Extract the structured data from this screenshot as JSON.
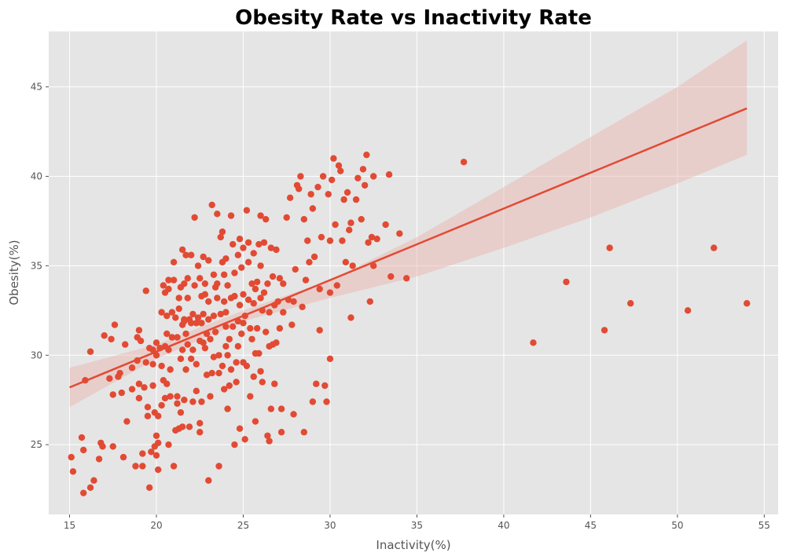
{
  "colors": {
    "plot_background": "#e5e5e5",
    "grid": "#ffffff",
    "points": "#e24a33",
    "regression_line": "#e24a33",
    "confidence_band": "#e9b1ab"
  },
  "chart_data": {
    "type": "scatter",
    "title": "Obesity Rate vs Inactivity Rate",
    "xlabel": "Inactivity(%)",
    "ylabel": "Obesity(%)",
    "xlim": [
      13.8,
      55.8
    ],
    "ylim": [
      21.1,
      48.1
    ],
    "xticks": [
      15,
      20,
      25,
      30,
      35,
      40,
      45,
      50,
      55
    ],
    "yticks": [
      25,
      30,
      35,
      40,
      45
    ],
    "grid": true,
    "regression": {
      "x": [
        15,
        54
      ],
      "y": [
        28.2,
        43.8
      ]
    },
    "confidence_band": {
      "x": [
        15,
        20,
        25,
        30,
        35,
        40,
        45,
        50,
        54
      ],
      "lower": [
        27.1,
        29.8,
        31.9,
        33.2,
        34.4,
        36.0,
        37.7,
        39.6,
        41.2
      ],
      "upper": [
        29.3,
        30.6,
        32.5,
        34.2,
        36.6,
        39.4,
        42.2,
        45.0,
        47.6
      ]
    },
    "points": [
      [
        15.1,
        24.3
      ],
      [
        15.2,
        23.5
      ],
      [
        15.7,
        25.4
      ],
      [
        15.8,
        24.7
      ],
      [
        15.8,
        22.3
      ],
      [
        15.9,
        28.6
      ],
      [
        16.2,
        22.6
      ],
      [
        16.2,
        30.2
      ],
      [
        16.4,
        23.0
      ],
      [
        16.7,
        24.2
      ],
      [
        16.8,
        25.1
      ],
      [
        16.9,
        24.9
      ],
      [
        17.0,
        31.1
      ],
      [
        17.3,
        28.7
      ],
      [
        17.4,
        30.9
      ],
      [
        17.5,
        27.8
      ],
      [
        17.5,
        24.9
      ],
      [
        17.6,
        31.7
      ],
      [
        17.8,
        28.8
      ],
      [
        17.9,
        29.0
      ],
      [
        18.0,
        27.9
      ],
      [
        18.1,
        24.3
      ],
      [
        18.2,
        30.6
      ],
      [
        18.3,
        26.3
      ],
      [
        18.6,
        28.1
      ],
      [
        18.6,
        29.3
      ],
      [
        18.8,
        23.8
      ],
      [
        18.9,
        29.7
      ],
      [
        18.9,
        31.0
      ],
      [
        19.0,
        28.4
      ],
      [
        19.0,
        27.6
      ],
      [
        19.0,
        31.4
      ],
      [
        19.1,
        30.8
      ],
      [
        19.2,
        23.8
      ],
      [
        19.2,
        24.5
      ],
      [
        19.3,
        28.2
      ],
      [
        19.4,
        33.6
      ],
      [
        19.4,
        29.6
      ],
      [
        19.5,
        26.6
      ],
      [
        19.5,
        27.1
      ],
      [
        19.6,
        30.4
      ],
      [
        19.6,
        22.6
      ],
      [
        19.7,
        24.6
      ],
      [
        19.8,
        29.5
      ],
      [
        19.8,
        30.3
      ],
      [
        19.8,
        28.3
      ],
      [
        19.9,
        26.8
      ],
      [
        19.9,
        24.9
      ],
      [
        20.0,
        25.5
      ],
      [
        20.0,
        24.4
      ],
      [
        20.0,
        30.0
      ],
      [
        20.0,
        30.7
      ],
      [
        20.1,
        26.6
      ],
      [
        20.1,
        25.1
      ],
      [
        20.1,
        23.6
      ],
      [
        20.2,
        30.4
      ],
      [
        20.3,
        27.2
      ],
      [
        20.3,
        29.4
      ],
      [
        20.3,
        32.4
      ],
      [
        20.4,
        33.9
      ],
      [
        20.4,
        28.6
      ],
      [
        20.5,
        33.5
      ],
      [
        20.5,
        27.6
      ],
      [
        20.5,
        30.5
      ],
      [
        20.6,
        32.2
      ],
      [
        20.6,
        28.4
      ],
      [
        20.6,
        31.2
      ],
      [
        20.7,
        34.2
      ],
      [
        20.7,
        33.7
      ],
      [
        20.7,
        30.3
      ],
      [
        20.7,
        25.0
      ],
      [
        20.8,
        29.2
      ],
      [
        20.8,
        27.7
      ],
      [
        20.9,
        32.4
      ],
      [
        20.9,
        31.0
      ],
      [
        21.0,
        34.2
      ],
      [
        21.0,
        35.2
      ],
      [
        21.0,
        23.8
      ],
      [
        21.1,
        25.8
      ],
      [
        21.1,
        32.1
      ],
      [
        21.2,
        27.7
      ],
      [
        21.2,
        27.3
      ],
      [
        21.2,
        31.0
      ],
      [
        21.3,
        33.2
      ],
      [
        21.3,
        25.9
      ],
      [
        21.3,
        32.6
      ],
      [
        21.4,
        29.8
      ],
      [
        21.4,
        26.8
      ],
      [
        21.4,
        33.8
      ],
      [
        21.5,
        31.7
      ],
      [
        21.5,
        26.0
      ],
      [
        21.5,
        30.3
      ],
      [
        21.5,
        35.9
      ],
      [
        21.6,
        31.9
      ],
      [
        21.6,
        27.5
      ],
      [
        21.6,
        32.0
      ],
      [
        21.6,
        34.0
      ],
      [
        21.7,
        31.2
      ],
      [
        21.7,
        29.2
      ],
      [
        21.7,
        35.6
      ],
      [
        21.8,
        30.6
      ],
      [
        21.8,
        34.3
      ],
      [
        21.8,
        33.2
      ],
      [
        21.9,
        32.0
      ],
      [
        21.9,
        26.0
      ],
      [
        22.0,
        29.8
      ],
      [
        22.0,
        35.6
      ],
      [
        22.0,
        31.8
      ],
      [
        22.1,
        32.3
      ],
      [
        22.1,
        27.4
      ],
      [
        22.1,
        30.3
      ],
      [
        22.2,
        37.7
      ],
      [
        22.2,
        33.9
      ],
      [
        22.3,
        31.8
      ],
      [
        22.3,
        28.0
      ],
      [
        22.3,
        29.5
      ],
      [
        22.4,
        32.1
      ],
      [
        22.4,
        35.0
      ],
      [
        22.5,
        34.3
      ],
      [
        22.5,
        30.8
      ],
      [
        22.5,
        26.2
      ],
      [
        22.5,
        25.7
      ],
      [
        22.6,
        33.3
      ],
      [
        22.6,
        27.4
      ],
      [
        22.6,
        31.8
      ],
      [
        22.7,
        30.7
      ],
      [
        22.7,
        35.5
      ],
      [
        22.7,
        32.3
      ],
      [
        22.8,
        34.0
      ],
      [
        22.8,
        33.4
      ],
      [
        22.8,
        30.4
      ],
      [
        22.9,
        28.9
      ],
      [
        22.9,
        31.2
      ],
      [
        23.0,
        33.0
      ],
      [
        23.0,
        35.3
      ],
      [
        23.0,
        32.0
      ],
      [
        23.0,
        23.0
      ],
      [
        23.1,
        30.9
      ],
      [
        23.1,
        27.7
      ],
      [
        23.2,
        38.4
      ],
      [
        23.2,
        29.0
      ],
      [
        23.3,
        34.5
      ],
      [
        23.3,
        32.2
      ],
      [
        23.3,
        29.9
      ],
      [
        23.4,
        31.3
      ],
      [
        23.4,
        33.8
      ],
      [
        23.5,
        37.9
      ],
      [
        23.5,
        34.0
      ],
      [
        23.5,
        33.2
      ],
      [
        23.6,
        30.0
      ],
      [
        23.6,
        29.0
      ],
      [
        23.6,
        23.8
      ],
      [
        23.7,
        32.3
      ],
      [
        23.7,
        36.6
      ],
      [
        23.8,
        35.2
      ],
      [
        23.8,
        29.4
      ],
      [
        23.8,
        36.9
      ],
      [
        23.9,
        28.1
      ],
      [
        23.9,
        33.0
      ],
      [
        23.9,
        34.5
      ],
      [
        24.0,
        32.4
      ],
      [
        24.0,
        30.5
      ],
      [
        24.0,
        31.6
      ],
      [
        24.0,
        35.4
      ],
      [
        24.1,
        27.0
      ],
      [
        24.1,
        30.0
      ],
      [
        24.1,
        33.9
      ],
      [
        24.2,
        30.9
      ],
      [
        24.2,
        28.3
      ],
      [
        24.3,
        37.8
      ],
      [
        24.3,
        33.2
      ],
      [
        24.3,
        29.2
      ],
      [
        24.4,
        31.6
      ],
      [
        24.4,
        36.2
      ],
      [
        24.5,
        25.0
      ],
      [
        24.5,
        34.6
      ],
      [
        24.5,
        33.3
      ],
      [
        24.6,
        29.6
      ],
      [
        24.6,
        28.5
      ],
      [
        24.7,
        35.6
      ],
      [
        24.7,
        30.5
      ],
      [
        24.7,
        31.9
      ],
      [
        24.8,
        36.5
      ],
      [
        24.8,
        32.8
      ],
      [
        24.8,
        25.9
      ],
      [
        24.9,
        34.9
      ],
      [
        24.9,
        31.2
      ],
      [
        25.0,
        33.4
      ],
      [
        25.0,
        36.0
      ],
      [
        25.0,
        29.6
      ],
      [
        25.0,
        31.8
      ],
      [
        25.1,
        32.2
      ],
      [
        25.1,
        25.3
      ],
      [
        25.2,
        38.1
      ],
      [
        25.2,
        29.4
      ],
      [
        25.3,
        33.1
      ],
      [
        25.3,
        35.2
      ],
      [
        25.3,
        36.3
      ],
      [
        25.4,
        27.7
      ],
      [
        25.4,
        31.5
      ],
      [
        25.5,
        30.9
      ],
      [
        25.5,
        34.0
      ],
      [
        25.6,
        28.8
      ],
      [
        25.6,
        32.9
      ],
      [
        25.6,
        35.7
      ],
      [
        25.7,
        33.7
      ],
      [
        25.7,
        30.1
      ],
      [
        25.7,
        26.3
      ],
      [
        25.8,
        34.1
      ],
      [
        25.8,
        31.5
      ],
      [
        25.9,
        36.2
      ],
      [
        25.9,
        30.1
      ],
      [
        26.0,
        37.8
      ],
      [
        26.0,
        33.2
      ],
      [
        26.0,
        29.1
      ],
      [
        26.0,
        35.0
      ],
      [
        26.1,
        32.5
      ],
      [
        26.1,
        28.5
      ],
      [
        26.2,
        33.5
      ],
      [
        26.2,
        36.3
      ],
      [
        26.3,
        37.6
      ],
      [
        26.3,
        31.3
      ],
      [
        26.4,
        25.5
      ],
      [
        26.4,
        34.0
      ],
      [
        26.5,
        30.5
      ],
      [
        26.5,
        32.4
      ],
      [
        26.5,
        25.2
      ],
      [
        26.6,
        36.0
      ],
      [
        26.6,
        27.0
      ],
      [
        26.7,
        34.4
      ],
      [
        26.7,
        30.6
      ],
      [
        26.8,
        28.4
      ],
      [
        26.8,
        32.8
      ],
      [
        26.9,
        35.9
      ],
      [
        26.9,
        30.7
      ],
      [
        27.0,
        33.0
      ],
      [
        27.1,
        34.3
      ],
      [
        27.1,
        31.5
      ],
      [
        27.2,
        27.0
      ],
      [
        27.2,
        25.7
      ],
      [
        27.3,
        34.0
      ],
      [
        27.3,
        32.4
      ],
      [
        27.5,
        37.7
      ],
      [
        27.6,
        33.1
      ],
      [
        27.7,
        38.8
      ],
      [
        27.8,
        31.7
      ],
      [
        27.9,
        26.7
      ],
      [
        27.9,
        33.0
      ],
      [
        28.0,
        34.8
      ],
      [
        28.1,
        39.5
      ],
      [
        28.2,
        39.3
      ],
      [
        28.3,
        40.0
      ],
      [
        28.4,
        32.7
      ],
      [
        28.5,
        25.7
      ],
      [
        28.5,
        37.6
      ],
      [
        28.6,
        34.2
      ],
      [
        28.7,
        36.4
      ],
      [
        28.8,
        35.2
      ],
      [
        28.9,
        39.0
      ],
      [
        29.0,
        27.4
      ],
      [
        29.0,
        38.2
      ],
      [
        29.1,
        35.5
      ],
      [
        29.2,
        28.4
      ],
      [
        29.3,
        39.4
      ],
      [
        29.4,
        33.7
      ],
      [
        29.4,
        31.4
      ],
      [
        29.5,
        36.6
      ],
      [
        29.6,
        40.0
      ],
      [
        29.7,
        28.3
      ],
      [
        29.8,
        27.4
      ],
      [
        29.9,
        39.0
      ],
      [
        30.0,
        33.5
      ],
      [
        30.0,
        36.4
      ],
      [
        30.0,
        29.8
      ],
      [
        30.1,
        39.8
      ],
      [
        30.2,
        41.0
      ],
      [
        30.3,
        37.3
      ],
      [
        30.4,
        33.9
      ],
      [
        30.5,
        40.6
      ],
      [
        30.6,
        40.3
      ],
      [
        30.7,
        36.4
      ],
      [
        30.8,
        38.7
      ],
      [
        30.9,
        35.2
      ],
      [
        31.0,
        39.1
      ],
      [
        31.1,
        37.0
      ],
      [
        31.2,
        37.4
      ],
      [
        31.2,
        32.1
      ],
      [
        31.3,
        35.0
      ],
      [
        31.5,
        38.7
      ],
      [
        31.6,
        39.9
      ],
      [
        31.8,
        37.6
      ],
      [
        31.9,
        40.4
      ],
      [
        32.0,
        39.5
      ],
      [
        32.1,
        41.2
      ],
      [
        32.2,
        36.3
      ],
      [
        32.3,
        33.0
      ],
      [
        32.4,
        36.6
      ],
      [
        32.5,
        40.0
      ],
      [
        32.5,
        35.0
      ],
      [
        32.7,
        36.5
      ],
      [
        33.2,
        37.3
      ],
      [
        33.4,
        40.1
      ],
      [
        33.5,
        34.4
      ],
      [
        34.0,
        36.8
      ],
      [
        34.4,
        34.3
      ],
      [
        37.7,
        40.8
      ],
      [
        41.7,
        30.7
      ],
      [
        43.6,
        34.1
      ],
      [
        45.8,
        31.4
      ],
      [
        46.1,
        36.0
      ],
      [
        47.3,
        32.9
      ],
      [
        50.6,
        32.5
      ],
      [
        52.1,
        36.0
      ],
      [
        54.0,
        32.9
      ]
    ]
  }
}
